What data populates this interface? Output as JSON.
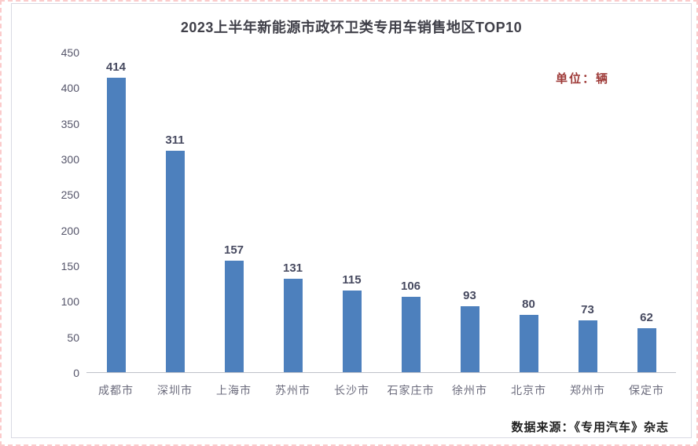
{
  "chart_data": {
    "type": "bar",
    "title": "2023上半年新能源市政环卫类专用车销售地区TOP10",
    "unit_label": "单位：辆",
    "source_note": "数据来源：《专用汽车》杂志",
    "categories": [
      "成都市",
      "深圳市",
      "上海市",
      "苏州市",
      "长沙市",
      "石家庄市",
      "徐州市",
      "北京市",
      "郑州市",
      "保定市"
    ],
    "values": [
      414,
      311,
      157,
      131,
      115,
      106,
      93,
      80,
      73,
      62
    ],
    "xlabel": "",
    "ylabel": "",
    "ylim": [
      0,
      450
    ],
    "ytick_step": 50,
    "grid": false,
    "legend_position": "none",
    "data_labels": true
  },
  "colors": {
    "bar": "#4d80bd",
    "title_text": "#404049",
    "value_label": "#474a60",
    "axis_tick": "#55556a",
    "category_label": "#6b6b7c",
    "unit_label": "#9e3a38",
    "source_text": "#1f1f1f",
    "axis_line": "#bfc1c9",
    "card_border": "#d9dae3"
  }
}
